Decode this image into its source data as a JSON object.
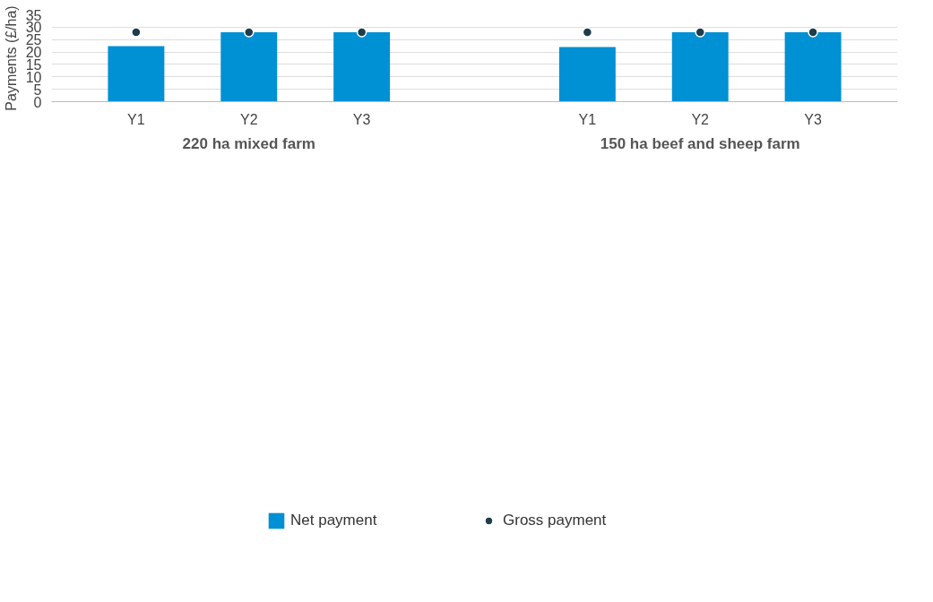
{
  "chart_data": {
    "type": "bar",
    "ylabel": "Payments (£/ha)",
    "categories": [
      "Y1",
      "Y2",
      "Y3",
      null,
      "Y1",
      "Y2",
      "Y3"
    ],
    "series": [
      {
        "name": "Net payment",
        "color": "#0090d4",
        "values": [
          22.4,
          28,
          28,
          null,
          22,
          28,
          28
        ]
      },
      {
        "name": "Gross payment",
        "type": "scatter",
        "color": "#1d3c4c",
        "values": [
          28,
          28,
          28,
          null,
          28,
          28,
          28
        ]
      }
    ],
    "annotations": [
      "220 ha mixed farm",
      "150 ha beef and sheep farm"
    ],
    "ylim": [
      0,
      35
    ],
    "yticks": [
      0,
      5,
      10,
      15,
      20,
      25,
      30,
      35
    ],
    "grid": "y",
    "legend": "bottom",
    "marker": "circle"
  }
}
